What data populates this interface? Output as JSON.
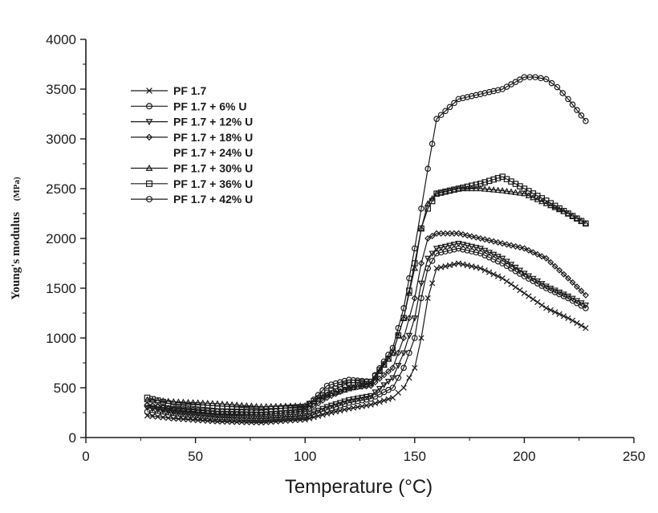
{
  "chart_data": {
    "type": "line",
    "title": "",
    "xlabel": "Temperature (°C)",
    "ylabel": "Young's modulus",
    "ylabel_unit": "(MPa)",
    "xlim": [
      0,
      250
    ],
    "ylim": [
      0,
      4000
    ],
    "xticks": [
      "0",
      "50",
      "100",
      "150",
      "200",
      "250"
    ],
    "yticks": [
      "0",
      "500",
      "1000",
      "1500",
      "2000",
      "2500",
      "3000",
      "3500",
      "4000"
    ],
    "grid": false,
    "legend_position": "top-left",
    "series": [
      {
        "name": "PF 1.7",
        "marker": "x",
        "x": [
          28,
          40,
          60,
          80,
          100,
          110,
          120,
          130,
          140,
          145,
          150,
          153,
          156,
          160,
          170,
          180,
          190,
          200,
          210,
          220,
          228
        ],
        "y": [
          220,
          190,
          160,
          150,
          180,
          240,
          290,
          330,
          400,
          500,
          700,
          1000,
          1400,
          1700,
          1750,
          1700,
          1600,
          1450,
          1300,
          1200,
          1100
        ]
      },
      {
        "name": "PF 1.7 + 6% U",
        "marker": "o",
        "x": [
          28,
          40,
          60,
          80,
          100,
          110,
          120,
          130,
          140,
          145,
          150,
          153,
          156,
          160,
          170,
          180,
          190,
          200,
          210,
          220,
          228
        ],
        "y": [
          260,
          220,
          180,
          170,
          200,
          280,
          350,
          390,
          500,
          700,
          1000,
          1400,
          1700,
          1850,
          1900,
          1850,
          1750,
          1620,
          1500,
          1400,
          1300
        ]
      },
      {
        "name": "PF 1.7 + 12% U",
        "marker": "triangle-down",
        "x": [
          28,
          40,
          60,
          80,
          100,
          110,
          120,
          130,
          140,
          145,
          150,
          153,
          156,
          160,
          170,
          180,
          190,
          200,
          210,
          220,
          228
        ],
        "y": [
          300,
          250,
          210,
          190,
          220,
          310,
          380,
          420,
          600,
          850,
          1200,
          1550,
          1800,
          1900,
          1950,
          1900,
          1800,
          1650,
          1520,
          1420,
          1330
        ]
      },
      {
        "name": "PF 1.7 + 18% U",
        "marker": "diamond",
        "x": [
          28,
          40,
          60,
          80,
          100,
          110,
          120,
          130,
          140,
          145,
          150,
          153,
          156,
          160,
          170,
          180,
          190,
          200,
          210,
          220,
          228
        ],
        "y": [
          330,
          280,
          240,
          230,
          260,
          400,
          500,
          520,
          700,
          1000,
          1400,
          1750,
          2000,
          2050,
          2050,
          2000,
          1950,
          1900,
          1800,
          1600,
          1430
        ]
      },
      {
        "name": "PF 1.7 + 24% U",
        "marker": "none",
        "x": [],
        "y": []
      },
      {
        "name": "PF 1.7 + 30% U",
        "marker": "triangle-up",
        "x": [
          28,
          40,
          60,
          80,
          100,
          110,
          120,
          130,
          140,
          145,
          150,
          153,
          156,
          160,
          170,
          180,
          190,
          200,
          210,
          220,
          228
        ],
        "y": [
          380,
          360,
          340,
          310,
          320,
          430,
          490,
          540,
          850,
          1200,
          1700,
          2100,
          2350,
          2450,
          2500,
          2500,
          2480,
          2450,
          2350,
          2250,
          2150
        ]
      },
      {
        "name": "PF 1.7 + 36% U",
        "marker": "square",
        "x": [
          28,
          40,
          60,
          80,
          100,
          110,
          120,
          130,
          140,
          145,
          150,
          153,
          156,
          160,
          170,
          180,
          190,
          200,
          210,
          220,
          228
        ],
        "y": [
          400,
          330,
          290,
          280,
          310,
          450,
          550,
          560,
          850,
          1200,
          1750,
          2100,
          2300,
          2450,
          2500,
          2550,
          2620,
          2500,
          2380,
          2250,
          2150
        ]
      },
      {
        "name": "PF 1.7 + 42% U",
        "marker": "o",
        "x": [
          28,
          40,
          60,
          80,
          100,
          110,
          120,
          130,
          140,
          145,
          150,
          153,
          156,
          160,
          170,
          180,
          190,
          200,
          205,
          210,
          215,
          220,
          228
        ],
        "y": [
          320,
          290,
          260,
          250,
          290,
          520,
          580,
          560,
          900,
          1300,
          1900,
          2300,
          2700,
          3200,
          3400,
          3450,
          3500,
          3620,
          3620,
          3600,
          3520,
          3400,
          3180
        ]
      }
    ]
  }
}
